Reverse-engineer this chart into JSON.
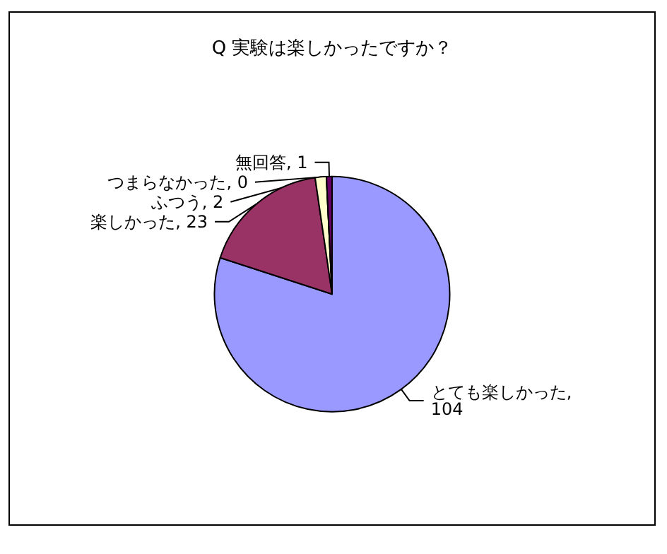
{
  "chart_data": {
    "type": "pie",
    "title": "Q 実験は楽しかったですか？",
    "categories": [
      "とても楽しかった",
      "楽しかった",
      "ふつう",
      "つまらなかった",
      "無回答"
    ],
    "values": [
      104,
      23,
      2,
      0,
      1
    ],
    "value_labels": [
      ", 104",
      ", 23",
      ", 2",
      ", 0",
      ", 1"
    ],
    "colors": [
      "#9999ff",
      "#993366",
      "#ffffcc",
      "#ccffff",
      "#660066"
    ],
    "legend": false
  }
}
